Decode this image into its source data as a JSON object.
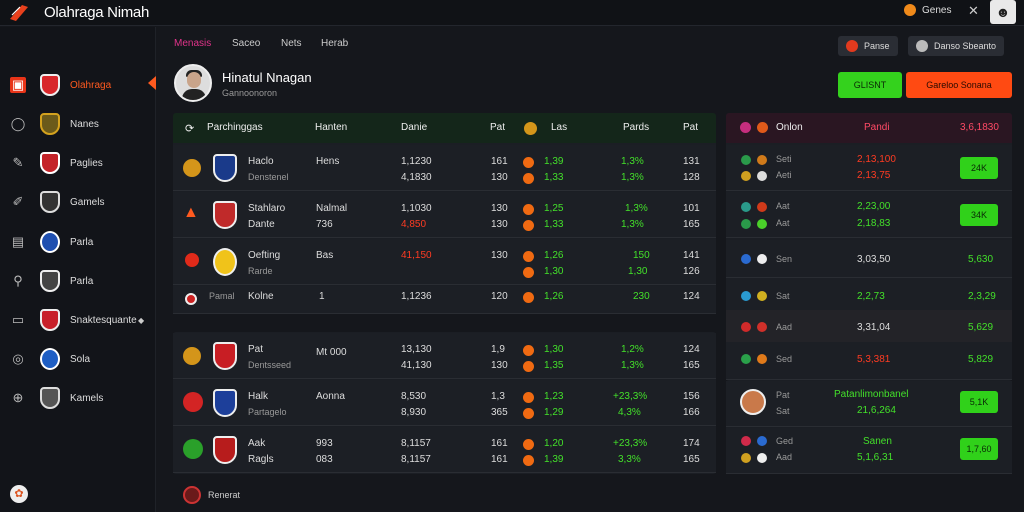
{
  "app": {
    "title": "Olahraga Nimah",
    "user_label": "Genes",
    "close_glyph": "✕"
  },
  "sidebar": {
    "items": [
      {
        "label": "Olahraga",
        "icon": "flag-icon",
        "active": true
      },
      {
        "label": "Nanes",
        "icon": "ring-icon"
      },
      {
        "label": "Paglies",
        "icon": "pen-icon"
      },
      {
        "label": "Gamels",
        "icon": "edit-icon"
      },
      {
        "label": "Parla",
        "icon": "calendar-icon"
      },
      {
        "label": "Parla",
        "icon": "link-icon"
      },
      {
        "label": "Snaktesquante",
        "icon": "tv-icon"
      },
      {
        "label": "Sola",
        "icon": "globe-icon"
      },
      {
        "label": "Kamels",
        "icon": "world-icon"
      }
    ]
  },
  "header": {
    "tabs": [
      "Menasis",
      "Saceo",
      "Nets",
      "Herab"
    ],
    "btn1": "Panse",
    "btn2": "Danso Sbeanto"
  },
  "profile": {
    "name": "Hinatul Nnagan",
    "sub": "Gannoonoron",
    "btn_green": "GLISNT",
    "btn_orange": "Gareloo Sonana"
  },
  "table": {
    "headers": {
      "c1": "Parchinggas",
      "c2": "Hanten",
      "c3": "Danie",
      "c4": "Pat",
      "c5": "Las",
      "c6": "Pards",
      "c7": "Pat"
    },
    "rows": [
      {
        "n1": "Haclo",
        "n2": "Denstenel",
        "h1": "Hens",
        "h2": "",
        "d1": "1,1230",
        "d2": "4,1830",
        "p1": "161",
        "p2": "130",
        "o1": "1,39",
        "o2": "1,33",
        "pc1": "1,3%",
        "pc2": "1,3%",
        "pt1": "131",
        "pt2": "128"
      },
      {
        "n1": "Stahlaro",
        "n2": "Dante",
        "h1": "Nalmal",
        "h2": "736",
        "d1": "1,1030",
        "d2": "4,850",
        "p1": "130",
        "p2": "130",
        "o1": "1,25",
        "o2": "1,33",
        "pc1": "1,3%",
        "pc2": "1,3%",
        "pt1": "101",
        "pt2": "165"
      },
      {
        "n1": "Oefting",
        "n2": "Rarde",
        "h1": "Bas",
        "h2": "",
        "d1": "41,150",
        "d2": "",
        "p1": "130",
        "p2": "",
        "o1": "1,26",
        "o2": "1,30",
        "pc1": "150",
        "pc2": "1,30",
        "pt1": "141",
        "pt2": "126"
      },
      {
        "n1": "Pamal",
        "n2": "",
        "h1": "Kolne",
        "h2": "1",
        "d1": "1,1236",
        "d2": "",
        "p1": "120",
        "p2": "",
        "o1": "1,26",
        "o2": "",
        "pc1": "230",
        "pc2": "",
        "pt1": "124",
        "pt2": ""
      }
    ],
    "rows2": [
      {
        "n1": "Pat",
        "n2": "Dentsseed",
        "h1": "Mt 000",
        "h2": "",
        "d1": "13,130",
        "d2": "41,130",
        "p1": "1,9",
        "p2": "130",
        "o1": "1,30",
        "o2": "1,35",
        "pc1": "1,2%",
        "pc2": "1,3%",
        "pt1": "124",
        "pt2": "165"
      },
      {
        "n1": "Halk",
        "n2": "Partagelo",
        "h1": "Aonna",
        "h2": "",
        "d1": "8,530",
        "d2": "8,930",
        "p1": "1,3",
        "p2": "365",
        "o1": "1,23",
        "o2": "1,29",
        "pc1": "+23,3%",
        "pc2": "4,3%",
        "pt1": "156",
        "pt2": "166"
      },
      {
        "n1": "Aak",
        "n2": "Ragls",
        "h1": "993",
        "h2": "083",
        "d1": "8,1157",
        "d2": "8,1157",
        "p1": "161",
        "p2": "161",
        "o1": "1,20",
        "o2": "1,39",
        "pc1": "+23,3%",
        "pc2": "3,3%",
        "pt1": "174",
        "pt2": "165"
      }
    ],
    "footer": "Renerat"
  },
  "right": {
    "headers": {
      "c1": "Onlon",
      "c2": "Pandi",
      "c3": "3,6,1830"
    },
    "rows": [
      {
        "a": "Seti",
        "b": "Aeti",
        "v1": "2,13,100",
        "v2": "2,13,75",
        "btn": "24K"
      },
      {
        "a": "Aat",
        "b": "Aat",
        "v1": "2,23,00",
        "v2": "2,18,83",
        "btn": "34K"
      },
      {
        "a": "Sen",
        "b": "",
        "v1": "3,03,50",
        "v2": "",
        "btn": "5,630"
      },
      {
        "a": "Sat",
        "b": "",
        "v1": "2,2,73",
        "v2": "",
        "btn": "2,3,29"
      },
      {
        "a": "Aad",
        "b": "",
        "v1": "3,31,04",
        "v2": "",
        "btn": "5,629"
      },
      {
        "a": "Sed",
        "b": "",
        "v1": "5,3,381",
        "v2": "",
        "btn": "5,829"
      },
      {
        "a": "Pat",
        "b": "Sat",
        "v1": "Patanlimonbanel",
        "v2": "21,6,264",
        "btn": "5,1K"
      },
      {
        "a": "Ged",
        "b": "Aad",
        "v1": "Sanen",
        "v2": "5,1,6,31",
        "btn": "1,7,60"
      }
    ]
  }
}
